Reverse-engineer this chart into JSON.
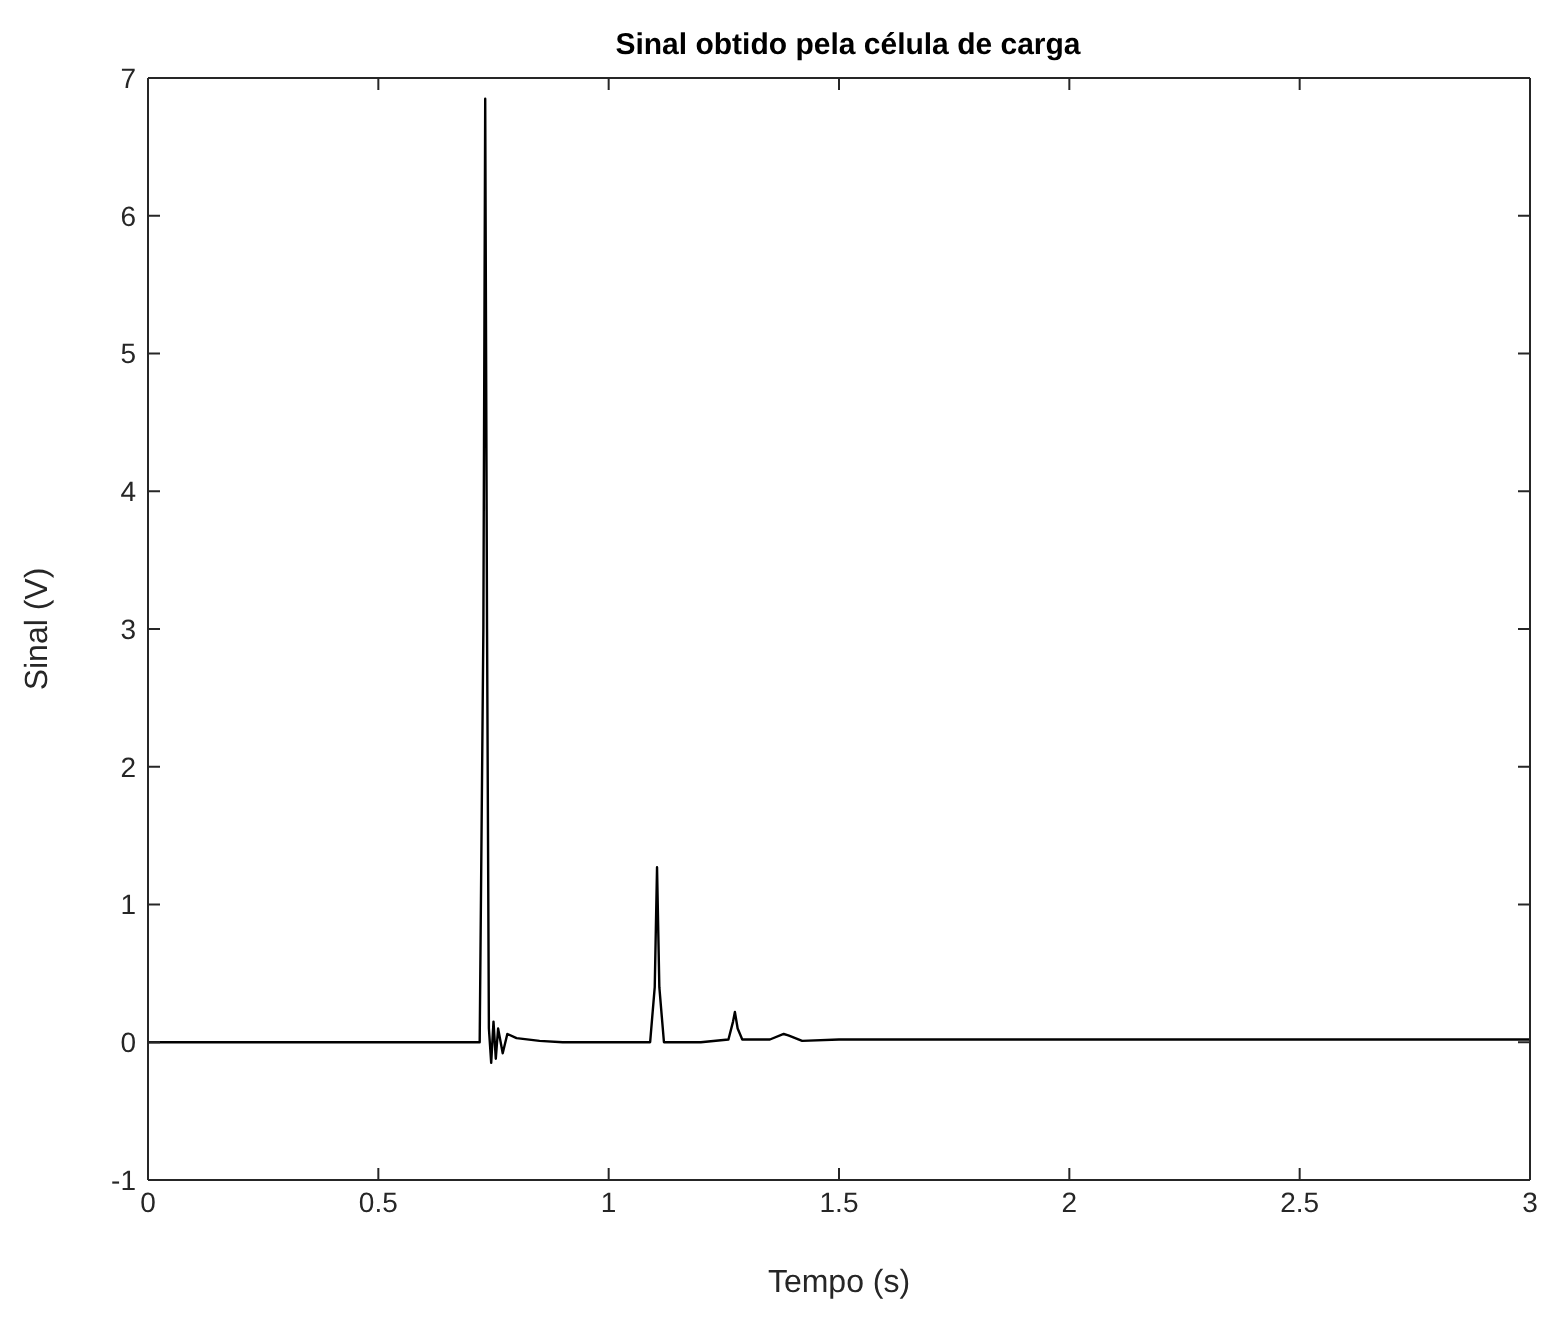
{
  "chart_data": {
    "type": "line",
    "title": "Sinal obtido pela célula de carga",
    "xlabel": "Tempo (s)",
    "ylabel": "Sinal (V)",
    "x": [
      0,
      0.2,
      0.4,
      0.6,
      0.72,
      0.728,
      0.732,
      0.736,
      0.74,
      0.745,
      0.75,
      0.755,
      0.76,
      0.77,
      0.78,
      0.8,
      0.85,
      0.9,
      1.0,
      1.09,
      1.1,
      1.105,
      1.11,
      1.12,
      1.2,
      1.26,
      1.27,
      1.274,
      1.28,
      1.29,
      1.35,
      1.38,
      1.39,
      1.42,
      1.5,
      2,
      2.5,
      3
    ],
    "series": [
      {
        "color": "#000000",
        "values": [
          0,
          0,
          0,
          0,
          0,
          3.0,
          6.85,
          3.0,
          0.1,
          -0.15,
          0.15,
          -0.12,
          0.1,
          -0.08,
          0.06,
          0.03,
          0.01,
          0,
          0,
          0,
          0.4,
          1.27,
          0.4,
          0,
          0,
          0.02,
          0.15,
          0.22,
          0.1,
          0.02,
          0.02,
          0.06,
          0.05,
          0.01,
          0.02,
          0.02,
          0.02,
          0.02
        ]
      }
    ],
    "xlim": [
      0,
      3
    ],
    "xticks": [
      0,
      0.5,
      1,
      1.5,
      2,
      2.5,
      3
    ],
    "ylim": [
      -1,
      7
    ],
    "yticks": [
      -1,
      0,
      1,
      2,
      3,
      4,
      5,
      6,
      7
    ],
    "grid": false,
    "legend": false,
    "marker": "none",
    "line_style": "solid"
  }
}
